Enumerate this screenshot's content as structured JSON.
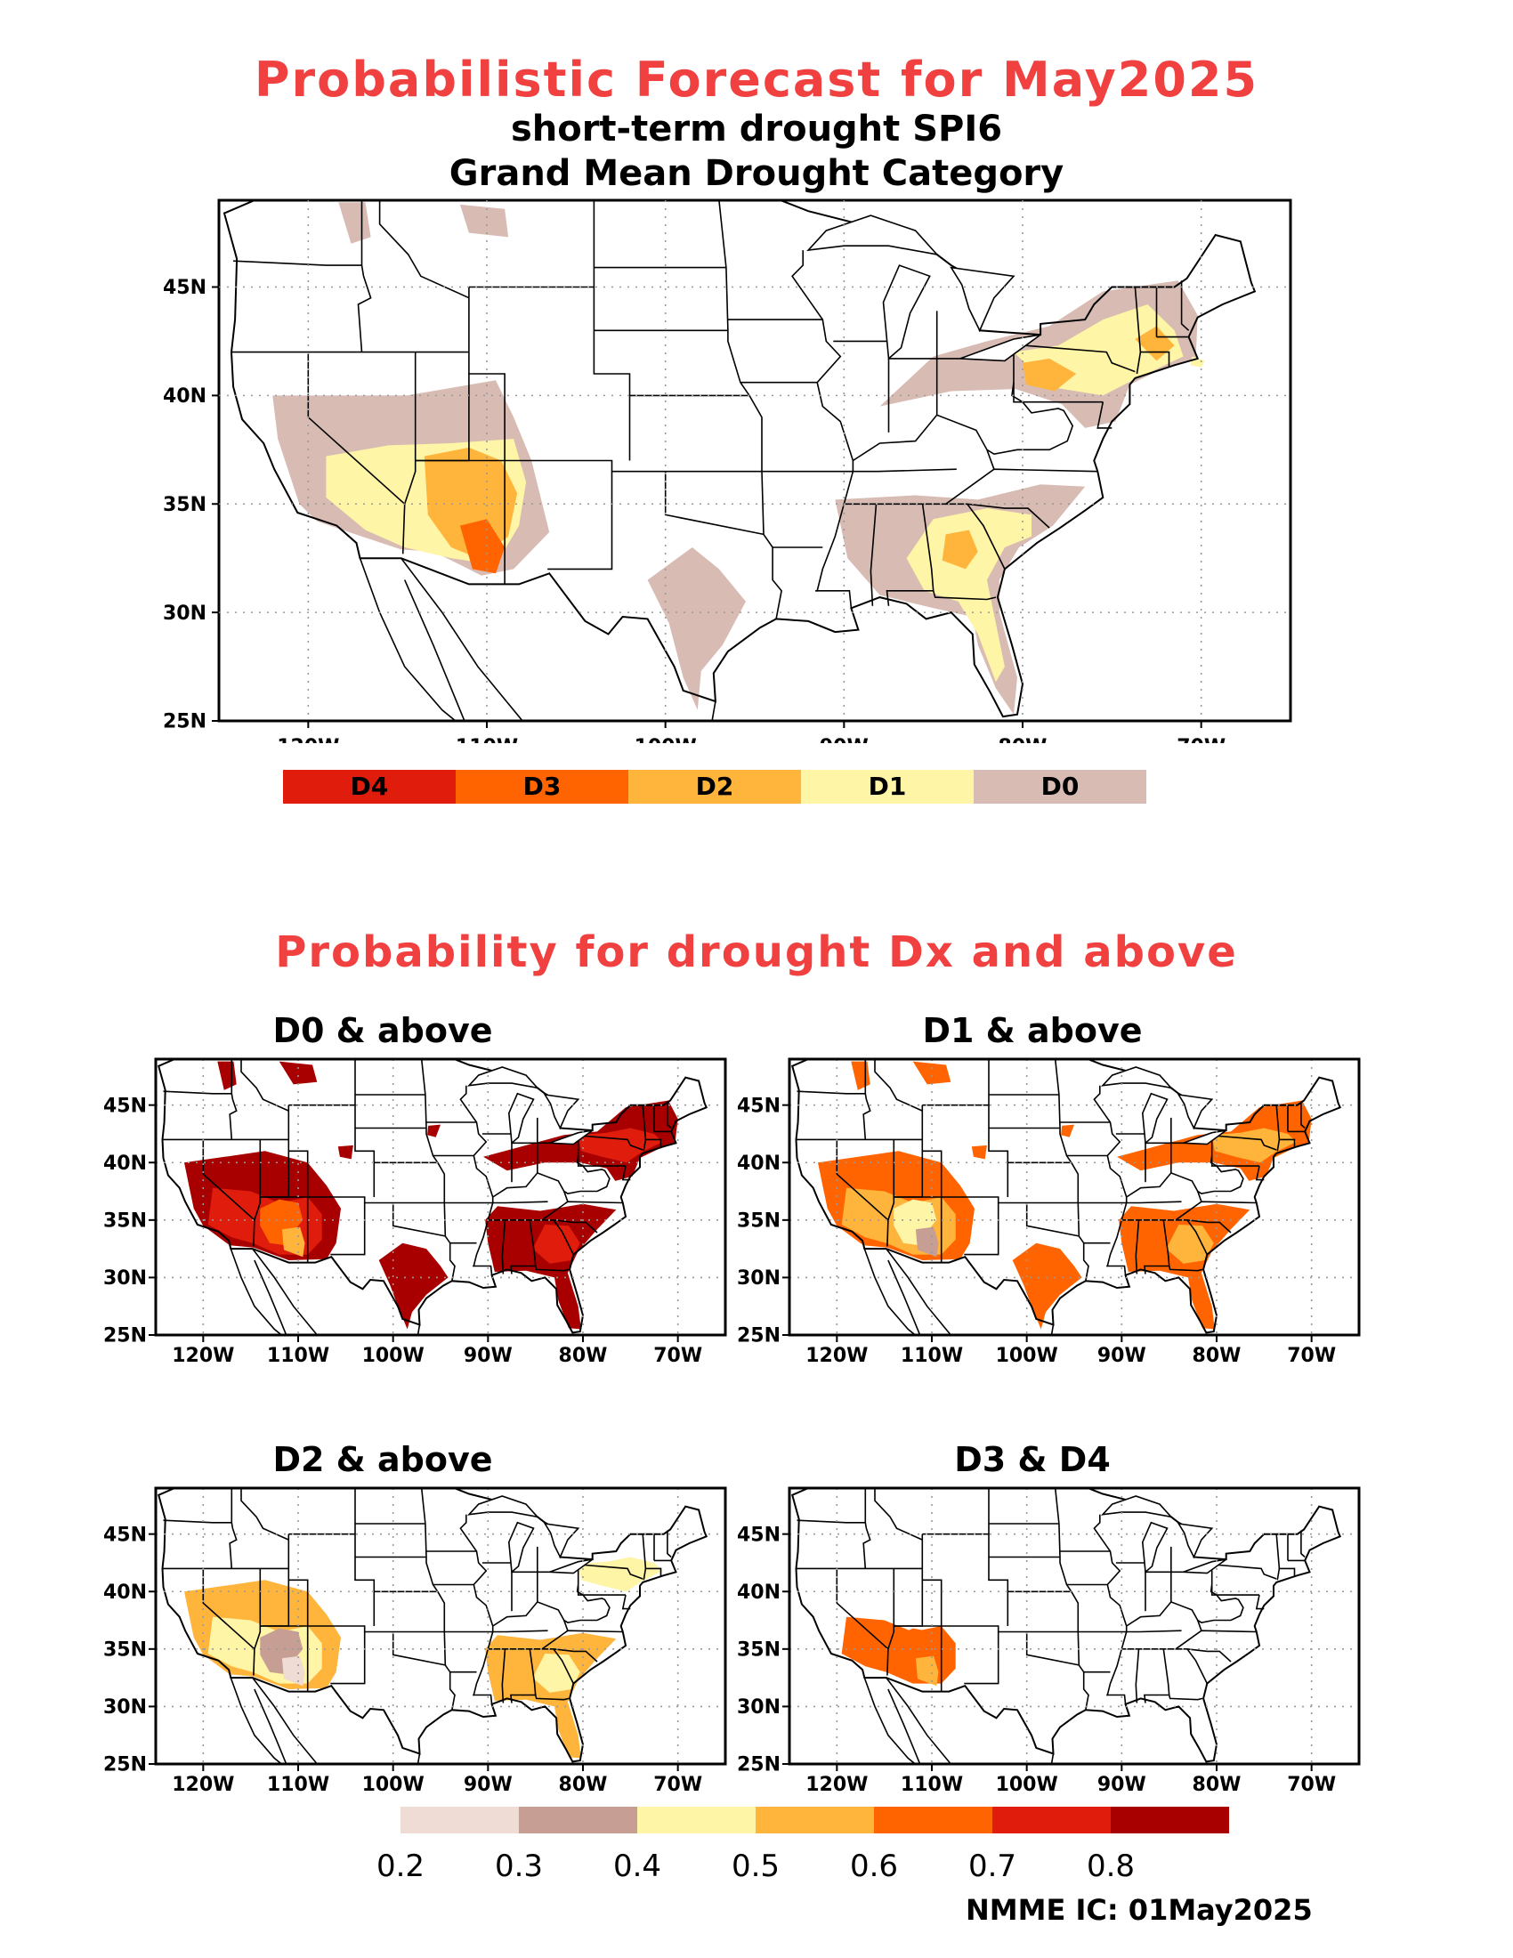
{
  "header": {
    "title": "Probabilistic Forecast for May2025",
    "subtitle1": "short-term drought SPI6",
    "subtitle2": "Grand Mean Drought Category"
  },
  "axes": {
    "lat_labels": [
      "45N",
      "40N",
      "35N",
      "30N",
      "25N"
    ],
    "lat_values": [
      45,
      40,
      35,
      30,
      25
    ],
    "lon_labels": [
      "120W",
      "110W",
      "100W",
      "90W",
      "80W",
      "70W"
    ],
    "lon_values": [
      -120,
      -110,
      -100,
      -90,
      -80,
      -70
    ],
    "lon_range": [
      -125,
      -65
    ],
    "lat_range": [
      25,
      49
    ]
  },
  "category_legend": {
    "items": [
      {
        "label": "D4",
        "color": "#e01c0c"
      },
      {
        "label": "D3",
        "color": "#ff6400"
      },
      {
        "label": "D2",
        "color": "#ffb43c"
      },
      {
        "label": "D1",
        "color": "#fff5a6"
      },
      {
        "label": "D0",
        "color": "#d8bcb4"
      }
    ]
  },
  "section_title": "Probability for drought Dx and above",
  "panels": [
    {
      "title": "D0 & above"
    },
    {
      "title": "D1 & above"
    },
    {
      "title": "D2 & above"
    },
    {
      "title": "D3 & D4"
    }
  ],
  "prob_legend": {
    "colors": [
      "#efdcd4",
      "#c69e94",
      "#fff5a6",
      "#ffb43c",
      "#ff6400",
      "#e01c0c",
      "#a80000"
    ],
    "labels": [
      "0.2",
      "0.3",
      "0.4",
      "0.5",
      "0.6",
      "0.7",
      "0.8"
    ]
  },
  "footer": "NMME IC: 01May2025"
}
